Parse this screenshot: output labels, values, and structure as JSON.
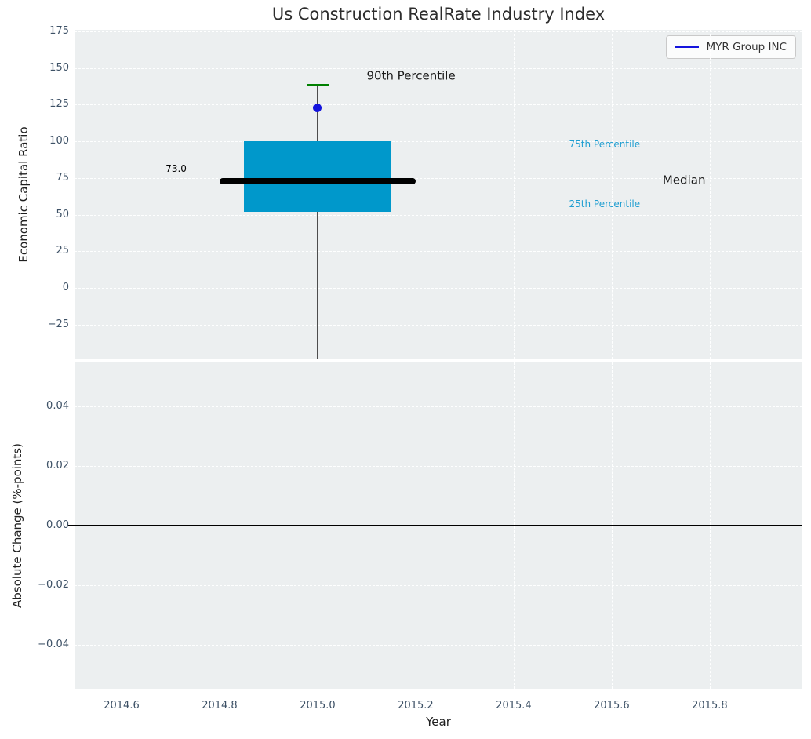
{
  "title": "Us Construction RealRate Industry Index",
  "legend": {
    "label": "MYR Group INC"
  },
  "colors": {
    "axes_background": "#eceff0",
    "grid": "#ffffff",
    "box_fill": "#0098cb",
    "median_line": "#000000",
    "whisker": "#4d4d4d",
    "percentile_cap": "#008000",
    "company_marker": "#1414dd",
    "legend_line": "#1414dd",
    "annotation_cyan": "#1f9ed1",
    "tick_label": "#3d5166",
    "zero_line": "#000000"
  },
  "chart_data": [
    {
      "type": "box",
      "title": "Us Construction RealRate Industry Index",
      "ylabel": "Economic Capital Ratio",
      "xlabel": "",
      "grid": "white dashed, on",
      "legend_position": "upper right",
      "xlim": [
        2014.504,
        2015.989
      ],
      "ylim": [
        -48.7,
        176.1
      ],
      "xticks": [
        2014.6,
        2014.8,
        2015.0,
        2015.2,
        2015.4,
        2015.6,
        2015.8
      ],
      "xtick_labels": [
        "2014.6",
        "2014.8",
        "2015.0",
        "2015.2",
        "2015.4",
        "2015.6",
        "2015.8"
      ],
      "yticks": [
        175,
        150,
        125,
        100,
        75,
        50,
        25,
        0,
        -25
      ],
      "ytick_labels": [
        "175",
        "150",
        "125",
        "100",
        "75",
        "50",
        "25",
        "0",
        "−25"
      ],
      "box": {
        "x": 2015.0,
        "q1": 52,
        "median": 73.0,
        "q3": 100,
        "p90": 138.5,
        "box_width": 0.3,
        "median_line_width": 0.4,
        "cap_width": 0.046,
        "median_label": "73.0"
      },
      "series": [
        {
          "name": "MYR Group INC",
          "type": "point",
          "x": 2015.0,
          "y": 123
        }
      ],
      "annotations": [
        {
          "text": "90th Percentile",
          "x": 2015.1,
          "y": 144.5,
          "color": "#1a1a1a",
          "size": 15
        },
        {
          "text": "75th Percentile",
          "x": 2015.513,
          "y": 97.5,
          "color": "#1f9ed1",
          "size": 12
        },
        {
          "text": "Median",
          "x": 2015.704,
          "y": 73.3,
          "color": "#1a1a1a",
          "size": 15
        },
        {
          "text": "25th Percentile",
          "x": 2015.513,
          "y": 56.5,
          "color": "#1f9ed1",
          "size": 12
        },
        {
          "text": "73.0",
          "x": 2014.69,
          "y": 80.8,
          "color": "#000000",
          "size": 12
        }
      ]
    },
    {
      "type": "line",
      "title": "",
      "ylabel": "Absolute Change (%-points)",
      "xlabel": "Year",
      "grid": "white dashed, on",
      "xlim": [
        2014.504,
        2015.989
      ],
      "ylim": [
        -0.0547,
        0.0547
      ],
      "xticks": [
        2014.6,
        2014.8,
        2015.0,
        2015.2,
        2015.4,
        2015.6,
        2015.8
      ],
      "xtick_labels": [
        "2014.6",
        "2014.8",
        "2015.0",
        "2015.2",
        "2015.4",
        "2015.6",
        "2015.8"
      ],
      "yticks": [
        0.04,
        0.02,
        0.0,
        -0.02,
        -0.04
      ],
      "ytick_labels": [
        "0.04",
        "0.02",
        "0.00",
        "−0.02",
        "−0.04"
      ],
      "zero_line_y": 0.0,
      "series": []
    }
  ]
}
